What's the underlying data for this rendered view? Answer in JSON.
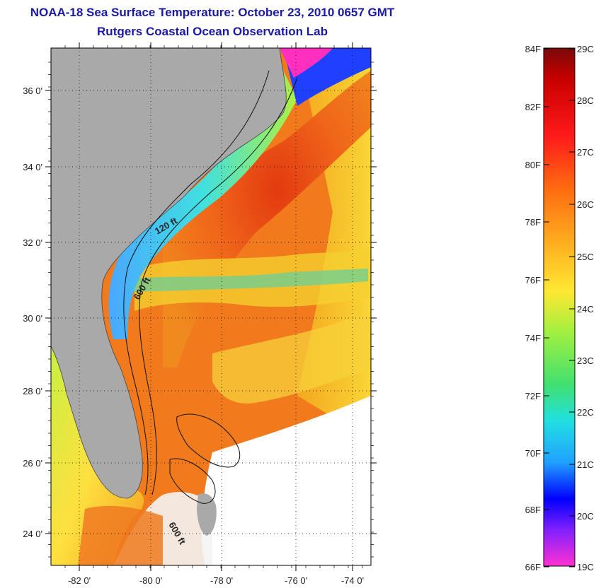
{
  "title": {
    "line1": "NOAA-18 Sea Surface Temperature:  October 23, 2010 0657 GMT",
    "line2": "Rutgers Coastal Ocean Observation Lab"
  },
  "map": {
    "lat_labels": [
      "36 0'",
      "34 0'",
      "32 0'",
      "30 0'",
      "28 0'",
      "26 0'",
      "24 0'"
    ],
    "lon_labels": [
      "-82 0'",
      "-80 0'",
      "-78 0'",
      "-76 0'",
      "-74 0'"
    ],
    "contour_labels": [
      "120 ft",
      "600 ft",
      "600 ft"
    ],
    "colors": {
      "land": "#a9a9a9",
      "no_data": "#ffffff"
    }
  },
  "colorbar": {
    "fahrenheit_labels": [
      "84F",
      "82F",
      "80F",
      "78F",
      "76F",
      "74F",
      "72F",
      "70F",
      "68F",
      "66F"
    ],
    "celsius_labels": [
      "29C",
      "28C",
      "27C",
      "26C",
      "25C",
      "24C",
      "23C",
      "22C",
      "21C",
      "20C",
      "19C"
    ]
  }
}
